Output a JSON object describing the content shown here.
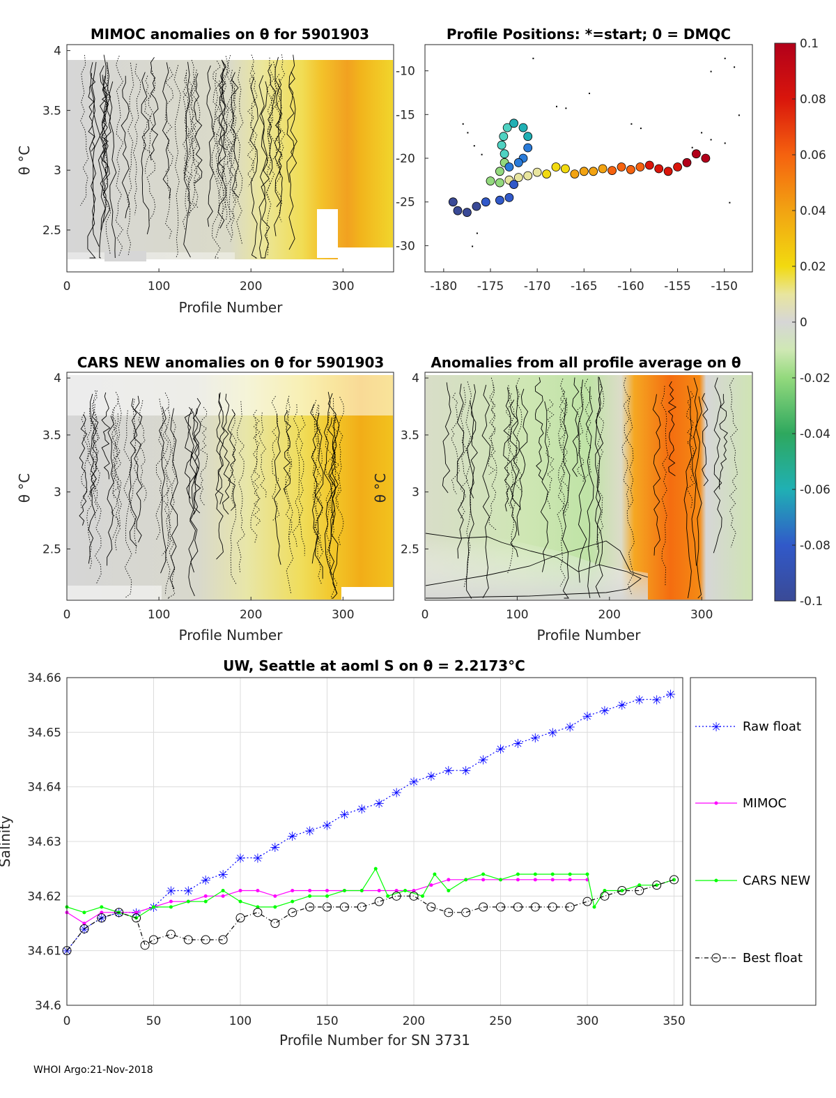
{
  "footer": "WHOI Argo:21-Nov-2018",
  "colorbar": {
    "ticks": [
      "0.1",
      "0.08",
      "0.06",
      "0.04",
      "0.02",
      "0",
      "-0.02",
      "-0.04",
      "-0.06",
      "-0.08",
      "-0.1"
    ],
    "range": [
      -0.1,
      0.1
    ]
  },
  "chart_data": [
    {
      "id": "mimoc",
      "type": "heatmap",
      "title": "MIMOC anomalies on θ  for 5901903",
      "xlabel": "Profile Number",
      "ylabel": "θ °C",
      "xticks": [
        "0",
        "100",
        "200",
        "300"
      ],
      "yticks": [
        "4",
        "3.5",
        "3",
        "2.5"
      ],
      "xlim": [
        0,
        355
      ],
      "ylim": [
        2.15,
        4.05
      ]
    },
    {
      "id": "positions",
      "type": "scatter",
      "title": "Profile Positions: *=start; 0 = DMQC",
      "xticks": [
        "-180",
        "-175",
        "-170",
        "-165",
        "-160",
        "-155",
        "-150"
      ],
      "yticks": [
        "-10",
        "-15",
        "-20",
        "-25",
        "-30"
      ],
      "xlim": [
        -182,
        -147
      ],
      "ylim": [
        -33,
        -7
      ]
    },
    {
      "id": "cars",
      "type": "heatmap",
      "title": "CARS NEW anomalies on θ for 5901903",
      "xlabel": "Profile Number",
      "ylabel": "θ °C",
      "xticks": [
        "0",
        "100",
        "200",
        "300"
      ],
      "yticks": [
        "4",
        "3.5",
        "3",
        "2.5"
      ],
      "xlim": [
        0,
        355
      ],
      "ylim": [
        2.05,
        4.05
      ]
    },
    {
      "id": "allavg",
      "type": "heatmap",
      "title": "Anomalies from all profile average on θ",
      "xlabel": "Profile Number",
      "ylabel": "θ °C",
      "xticks": [
        "0",
        "100",
        "200",
        "300"
      ],
      "yticks": [
        "4",
        "3.5",
        "3",
        "2.5"
      ],
      "xlim": [
        0,
        355
      ],
      "ylim": [
        2.05,
        4.05
      ]
    },
    {
      "id": "salinity",
      "type": "line",
      "title": "UW, Seattle at aoml S on θ = 2.2173°C",
      "xlabel": "Profile Number for SN 3731",
      "ylabel": "Salinity",
      "xlim": [
        0,
        355
      ],
      "ylim": [
        34.6,
        34.66
      ],
      "xticks": [
        "0",
        "50",
        "100",
        "150",
        "200",
        "250",
        "300",
        "350"
      ],
      "yticks": [
        "34.66",
        "34.65",
        "34.64",
        "34.63",
        "34.62",
        "34.61",
        "34.6"
      ],
      "grid": true,
      "legend": "right outside",
      "series": [
        {
          "name": "Raw float",
          "color": "#0000ff",
          "marker": "star",
          "line": "dotted",
          "x": [
            0,
            10,
            20,
            30,
            40,
            50,
            60,
            70,
            80,
            90,
            100,
            110,
            120,
            130,
            140,
            150,
            160,
            170,
            180,
            190,
            200,
            210,
            220,
            230,
            240,
            250,
            260,
            270,
            280,
            290,
            300,
            310,
            320,
            330,
            340,
            348
          ],
          "y": [
            34.61,
            34.614,
            34.616,
            34.617,
            34.617,
            34.618,
            34.621,
            34.621,
            34.623,
            34.624,
            34.627,
            34.627,
            34.629,
            34.631,
            34.632,
            34.633,
            34.635,
            34.636,
            34.637,
            34.639,
            34.641,
            34.642,
            34.643,
            34.643,
            34.645,
            34.647,
            34.648,
            34.649,
            34.65,
            34.651,
            34.653,
            34.654,
            34.655,
            34.656,
            34.656,
            34.657
          ]
        },
        {
          "name": "MIMOC",
          "color": "#ff00ff",
          "marker": "dot",
          "line": "solid",
          "x": [
            0,
            10,
            20,
            30,
            40,
            50,
            60,
            70,
            80,
            90,
            100,
            110,
            120,
            130,
            140,
            150,
            160,
            170,
            180,
            190,
            200,
            210,
            220,
            230,
            240,
            250,
            260,
            270,
            280,
            290,
            300
          ],
          "y": [
            34.617,
            34.615,
            34.617,
            34.617,
            34.617,
            34.618,
            34.619,
            34.619,
            34.62,
            34.62,
            34.621,
            34.621,
            34.62,
            34.621,
            34.621,
            34.621,
            34.621,
            34.621,
            34.621,
            34.621,
            34.621,
            34.622,
            34.623,
            34.623,
            34.623,
            34.623,
            34.623,
            34.623,
            34.623,
            34.623,
            34.623
          ]
        },
        {
          "name": "CARS NEW",
          "color": "#00ff00",
          "marker": "dot",
          "line": "solid",
          "x": [
            0,
            10,
            20,
            30,
            40,
            50,
            60,
            70,
            80,
            90,
            100,
            110,
            120,
            130,
            140,
            150,
            160,
            170,
            178,
            185,
            195,
            205,
            212,
            220,
            230,
            240,
            250,
            260,
            270,
            280,
            290,
            300,
            304,
            310,
            320,
            330,
            340,
            350
          ],
          "y": [
            34.618,
            34.617,
            34.618,
            34.617,
            34.616,
            34.618,
            34.618,
            34.619,
            34.619,
            34.621,
            34.619,
            34.618,
            34.618,
            34.619,
            34.62,
            34.62,
            34.621,
            34.621,
            34.625,
            34.62,
            34.621,
            34.62,
            34.624,
            34.621,
            34.623,
            34.624,
            34.623,
            34.624,
            34.624,
            34.624,
            34.624,
            34.624,
            34.618,
            34.621,
            34.621,
            34.622,
            34.622,
            34.623
          ]
        },
        {
          "name": "Best float",
          "color": "#000000",
          "marker": "circle",
          "line": "dashdot",
          "x": [
            0,
            10,
            20,
            30,
            40,
            45,
            50,
            60,
            70,
            80,
            90,
            100,
            110,
            120,
            130,
            140,
            150,
            160,
            170,
            180,
            190,
            200,
            210,
            220,
            230,
            240,
            250,
            260,
            270,
            280,
            290,
            300,
            310,
            320,
            330,
            340,
            350
          ],
          "y": [
            34.61,
            34.614,
            34.616,
            34.617,
            34.616,
            34.611,
            34.612,
            34.613,
            34.612,
            34.612,
            34.612,
            34.616,
            34.617,
            34.615,
            34.617,
            34.618,
            34.618,
            34.618,
            34.618,
            34.619,
            34.62,
            34.62,
            34.618,
            34.617,
            34.617,
            34.618,
            34.618,
            34.618,
            34.618,
            34.618,
            34.618,
            34.619,
            34.62,
            34.621,
            34.621,
            34.622,
            34.623
          ]
        }
      ]
    }
  ]
}
